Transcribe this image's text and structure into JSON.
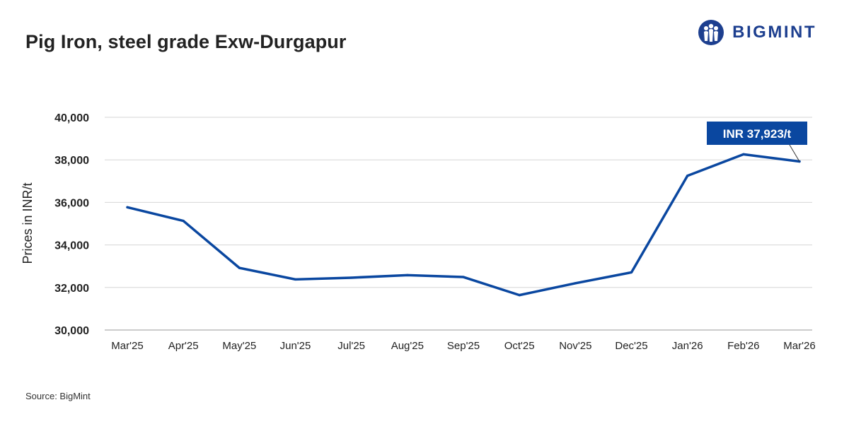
{
  "title": "Pig Iron, steel grade Exw-Durgapur",
  "brand": {
    "name": "BIGMINT",
    "color": "#1d3f8f"
  },
  "source": "Source: BigMint",
  "chart_data": {
    "type": "line",
    "title": "Pig Iron, steel grade Exw-Durgapur",
    "xlabel": "",
    "ylabel": "Prices in INR/t",
    "categories": [
      "Mar'25",
      "Apr'25",
      "May'25",
      "Jun'25",
      "Jul'25",
      "Aug'25",
      "Sep'25",
      "Oct'25",
      "Nov'25",
      "Dec'25",
      "Jan'26",
      "Feb'26",
      "Mar'26"
    ],
    "series": [
      {
        "values": [
          35770,
          35130,
          32920,
          32380,
          32460,
          32580,
          32490,
          31640,
          32200,
          32710,
          37250,
          38260,
          37923
        ],
        "color": "#0a47a0"
      }
    ],
    "ylim": [
      30000,
      40000
    ],
    "yticks": [
      30000,
      32000,
      34000,
      36000,
      38000,
      40000
    ],
    "ytick_labels": [
      "30,000",
      "32,000",
      "34,000",
      "36,000",
      "38,000",
      "40,000"
    ],
    "grid": true,
    "legend": "none",
    "annotation": {
      "text": "INR 37,923/t",
      "category": "Mar'26",
      "value": 37923,
      "color": "#0a47a0"
    }
  }
}
